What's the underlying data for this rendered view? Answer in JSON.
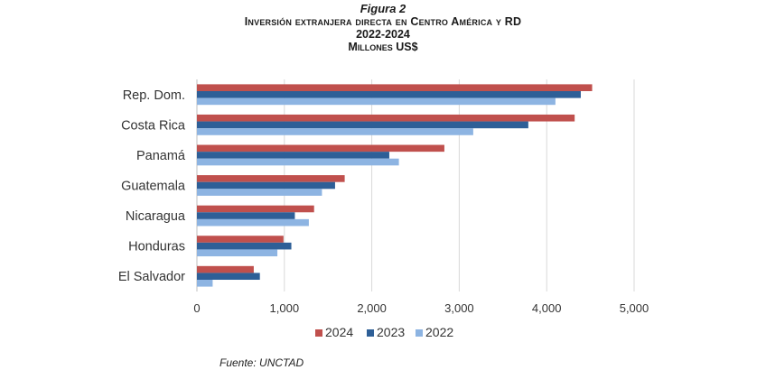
{
  "figure": {
    "label": "Figura 2",
    "title": "Inversión extranjera directa en Centro América y RD",
    "period": "2022-2024",
    "units": "Millones US$",
    "source": "Fuente: UNCTAD"
  },
  "chart_data": {
    "type": "bar",
    "orientation": "horizontal",
    "categories": [
      "Rep. Dom.",
      "Costa Rica",
      "Panamá",
      "Guatemala",
      "Nicaragua",
      "Honduras",
      "El Salvador"
    ],
    "series": [
      {
        "name": "2024",
        "color": "#c0504d",
        "values": [
          4520,
          4320,
          2830,
          1690,
          1340,
          990,
          650
        ]
      },
      {
        "name": "2023",
        "color": "#2e5f97",
        "values": [
          4390,
          3790,
          2200,
          1580,
          1120,
          1080,
          720
        ]
      },
      {
        "name": "2022",
        "color": "#8db4e2",
        "values": [
          4100,
          3160,
          2310,
          1430,
          1280,
          920,
          180
        ]
      }
    ],
    "xlim": [
      0,
      5000
    ],
    "xticks": [
      0,
      1000,
      2000,
      3000,
      4000,
      5000
    ],
    "xtick_labels": [
      "0",
      "1,000",
      "2,000",
      "3,000",
      "4,000",
      "5,000"
    ],
    "grid": true,
    "legend_position": "bottom"
  }
}
